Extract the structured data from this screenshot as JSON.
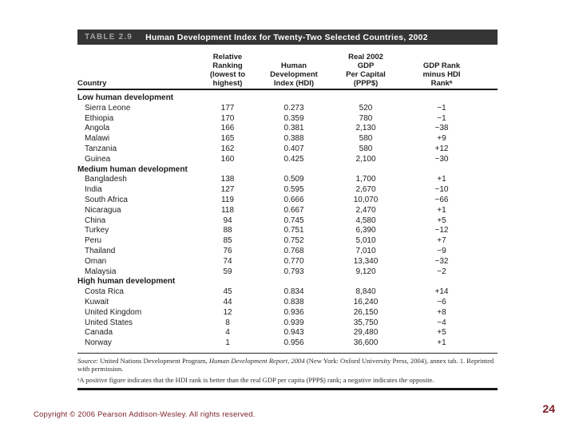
{
  "slide": {
    "footer": "Copyright © 2006 Pearson Addison-Wesley. All rights reserved.",
    "page_number": "24",
    "accent_color": "#7d2128",
    "titlebar_color": "#353535",
    "background_color": "#ffffff"
  },
  "table": {
    "tag": "TABLE 2.9",
    "title": "Human Development Index for Twenty-Two Selected Countries, 2002",
    "columns": [
      "Country",
      "Relative\nRanking\n(lowest to\nhighest)",
      "Human\nDevelopment\nIndex (HDI)",
      "Real 2002\nGDP\nPer Capital\n(PPP$)",
      "GDP Rank\nminus HDI\nRankᵃ"
    ],
    "sections": [
      {
        "label": "Low human development",
        "rows": [
          {
            "country": "Sierra Leone",
            "rank": "177",
            "hdi": "0.273",
            "gdp": "520",
            "diff": "−1"
          },
          {
            "country": "Ethiopia",
            "rank": "170",
            "hdi": "0.359",
            "gdp": "780",
            "diff": "−1"
          },
          {
            "country": "Angola",
            "rank": "166",
            "hdi": "0.381",
            "gdp": "2,130",
            "diff": "−38"
          },
          {
            "country": "Malawi",
            "rank": "165",
            "hdi": "0.388",
            "gdp": "580",
            "diff": "+9"
          },
          {
            "country": "Tanzania",
            "rank": "162",
            "hdi": "0.407",
            "gdp": "580",
            "diff": "+12"
          },
          {
            "country": "Guinea",
            "rank": "160",
            "hdi": "0.425",
            "gdp": "2,100",
            "diff": "−30"
          }
        ]
      },
      {
        "label": "Medium human development",
        "rows": [
          {
            "country": "Bangladesh",
            "rank": "138",
            "hdi": "0.509",
            "gdp": "1,700",
            "diff": "+1"
          },
          {
            "country": "India",
            "rank": "127",
            "hdi": "0.595",
            "gdp": "2,670",
            "diff": "−10"
          },
          {
            "country": "South Africa",
            "rank": "119",
            "hdi": "0.666",
            "gdp": "10,070",
            "diff": "−66"
          },
          {
            "country": "Nicaragua",
            "rank": "118",
            "hdi": "0.667",
            "gdp": "2,470",
            "diff": "+1"
          },
          {
            "country": "China",
            "rank": "94",
            "hdi": "0.745",
            "gdp": "4,580",
            "diff": "+5"
          },
          {
            "country": "Turkey",
            "rank": "88",
            "hdi": "0.751",
            "gdp": "6,390",
            "diff": "−12"
          },
          {
            "country": "Peru",
            "rank": "85",
            "hdi": "0.752",
            "gdp": "5,010",
            "diff": "+7"
          },
          {
            "country": "Thailand",
            "rank": "76",
            "hdi": "0.768",
            "gdp": "7,010",
            "diff": "−9"
          },
          {
            "country": "Oman",
            "rank": "74",
            "hdi": "0.770",
            "gdp": "13,340",
            "diff": "−32"
          },
          {
            "country": "Malaysia",
            "rank": "59",
            "hdi": "0.793",
            "gdp": "9,120",
            "diff": "−2"
          }
        ]
      },
      {
        "label": "High human development",
        "rows": [
          {
            "country": "Costa Rica",
            "rank": "45",
            "hdi": "0.834",
            "gdp": "8,840",
            "diff": "+14"
          },
          {
            "country": "Kuwait",
            "rank": "44",
            "hdi": "0.838",
            "gdp": "16,240",
            "diff": "−6"
          },
          {
            "country": "United Kingdom",
            "rank": "12",
            "hdi": "0.936",
            "gdp": "26,150",
            "diff": "+8"
          },
          {
            "country": "United States",
            "rank": "8",
            "hdi": "0.939",
            "gdp": "35,750",
            "diff": "−4"
          },
          {
            "country": "Canada",
            "rank": "4",
            "hdi": "0.943",
            "gdp": "29,480",
            "diff": "+5"
          },
          {
            "country": "Norway",
            "rank": "1",
            "hdi": "0.956",
            "gdp": "36,600",
            "diff": "+1"
          }
        ]
      }
    ],
    "source_segments": [
      {
        "text": "Source",
        "italic": true
      },
      {
        "text": ": United Nations Development Program, ",
        "italic": false
      },
      {
        "text": "Human Development Report, 2004",
        "italic": true
      },
      {
        "text": " (New York: Oxford University Press, 2004), annex tab. 1. Reprinted with permission.",
        "italic": false
      }
    ],
    "footnote": "ᵃA positive figure indicates that the HDI rank is better than the real GDP per capita (PPP$) rank; a negative indicates the opposite."
  }
}
